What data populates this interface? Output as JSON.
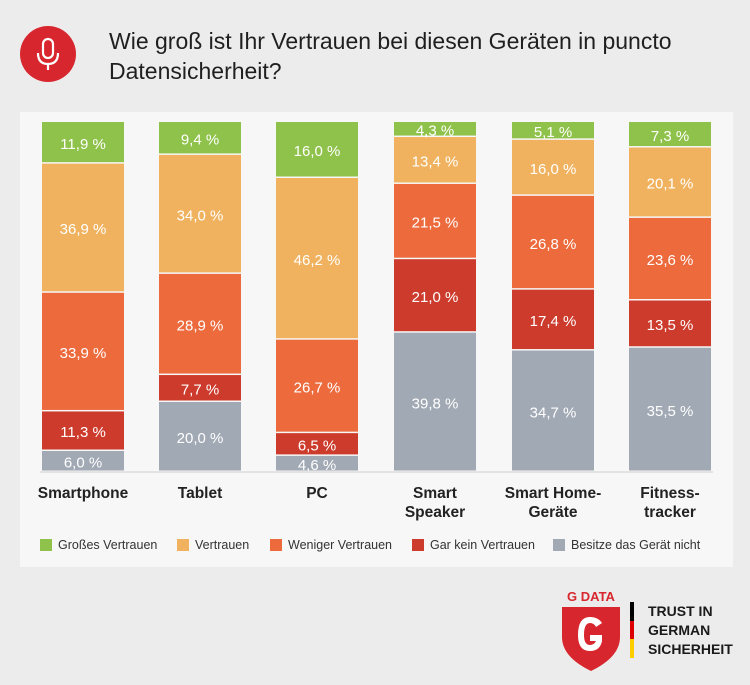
{
  "title": "Wie groß ist Ihr Vertrauen bei diesen Geräten in puncto Datensicherheit?",
  "header": {
    "icon": "microphone-icon",
    "icon_color": "#d8262e"
  },
  "chart_data": {
    "type": "bar",
    "stacked": true,
    "ylim": [
      0,
      100
    ],
    "categories": [
      "Smartphone",
      "Tablet",
      "PC",
      "Smart Speaker",
      "Smart Home-Geräte",
      "Fitness-tracker"
    ],
    "category_labels": [
      [
        "Smartphone"
      ],
      [
        "Tablet"
      ],
      [
        "PC"
      ],
      [
        "Smart",
        "Speaker"
      ],
      [
        "Smart Home-",
        "Geräte"
      ],
      [
        "Fitness-",
        "tracker"
      ]
    ],
    "series": [
      {
        "name": "Großes Vertrauen",
        "color": "#8fc24a",
        "values": [
          11.9,
          9.4,
          16.0,
          4.3,
          5.1,
          7.3
        ],
        "labels": [
          "11,9 %",
          "9,4 %",
          "16,0 %",
          "4,3 %",
          "5,1 %",
          "7,3 %"
        ]
      },
      {
        "name": "Vertrauen",
        "color": "#f0b25e",
        "values": [
          36.9,
          34.0,
          46.2,
          13.4,
          16.0,
          20.1
        ],
        "labels": [
          "36,9 %",
          "34,0 %",
          "46,2 %",
          "13,4 %",
          "16,0 %",
          "20,1 %"
        ]
      },
      {
        "name": "Weniger Vertrauen",
        "color": "#ec6a3c",
        "values": [
          33.9,
          28.9,
          26.7,
          21.5,
          26.8,
          23.6
        ],
        "labels": [
          "33,9 %",
          "28,9 %",
          "26,7 %",
          "21,5 %",
          "26,8 %",
          "23,6 %"
        ]
      },
      {
        "name": "Gar kein Vertrauen",
        "color": "#cc3b2c",
        "values": [
          11.3,
          7.7,
          6.5,
          21.0,
          17.4,
          13.5
        ],
        "labels": [
          "11,3 %",
          "7,7 %",
          "6,5 %",
          "21,0 %",
          "17,4 %",
          "13,5 %"
        ]
      },
      {
        "name": "Besitze das Gerät nicht",
        "color": "#a1a9b4",
        "values": [
          6.0,
          20.0,
          4.6,
          39.8,
          34.7,
          35.5
        ],
        "labels": [
          "6,0 %",
          "20,0 %",
          "4,6 %",
          "39,8 %",
          "34,7 %",
          "35,5 %"
        ]
      }
    ],
    "legend_position": "bottom"
  },
  "brand": {
    "logo_text": "G DATA",
    "logo_color": "#d8262e",
    "tagline": [
      "TRUST IN",
      "GERMAN",
      "SICHERHEIT"
    ]
  }
}
